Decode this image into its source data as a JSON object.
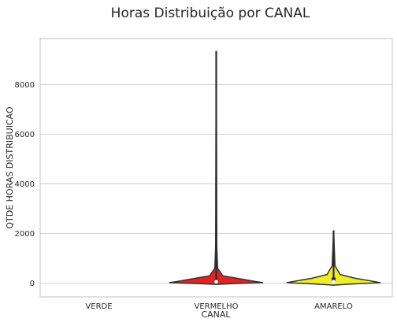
{
  "chart_data": {
    "type": "violin",
    "title": "Horas Distribuição por CANAL",
    "xlabel": "CANAL",
    "ylabel": "QTDE HORAS DISTRIBUICAO",
    "categories": [
      "VERDE",
      "VERMELHO",
      "AMARELO"
    ],
    "colors": [
      "#2ca02c",
      "#e32222",
      "#eded2a"
    ],
    "ylim": [
      -550,
      9850
    ],
    "yticks": [
      0,
      2000,
      4000,
      6000,
      8000
    ],
    "grid": true,
    "violins": [
      {
        "category": "VERDE",
        "present": false
      },
      {
        "category": "VERMELHO",
        "present": true,
        "min": 0,
        "max": 9350,
        "whisker_high": 9350,
        "q1": 20,
        "median": 60,
        "q3": 150,
        "profile": [
          [
            -45,
            0.0
          ],
          [
            -10,
            0.45
          ],
          [
            20,
            1.0
          ],
          [
            80,
            0.8
          ],
          [
            180,
            0.5
          ],
          [
            300,
            0.14
          ],
          [
            600,
            0.03
          ],
          [
            1500,
            0.012
          ],
          [
            9350,
            0.0
          ]
        ]
      },
      {
        "category": "AMARELO",
        "present": true,
        "min": 0,
        "max": 2130,
        "whisker_high": 2130,
        "q1": 20,
        "median": 60,
        "q3": 230,
        "profile": [
          [
            -80,
            0.0
          ],
          [
            -30,
            0.4
          ],
          [
            20,
            1.0
          ],
          [
            90,
            0.8
          ],
          [
            200,
            0.46
          ],
          [
            350,
            0.14
          ],
          [
            700,
            0.03
          ],
          [
            2130,
            0.0
          ]
        ]
      }
    ]
  }
}
